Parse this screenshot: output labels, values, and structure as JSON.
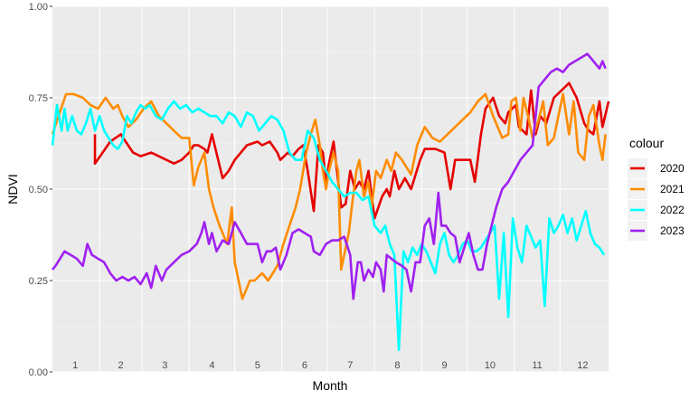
{
  "chart_data": {
    "type": "line",
    "title": "",
    "xlabel": "Month",
    "ylabel": "NDVI",
    "ylim": [
      0,
      1
    ],
    "xlim": [
      0,
      366
    ],
    "y_ticks": [
      "0.00",
      "0.25",
      "0.50",
      "0.75",
      "1.00"
    ],
    "y_tick_values": [
      0,
      0.25,
      0.5,
      0.75,
      1.0
    ],
    "month_labels": [
      "1",
      "2",
      "3",
      "4",
      "5",
      "6",
      "7",
      "8",
      "9",
      "10",
      "11",
      "12"
    ],
    "month_label_days": [
      15,
      45,
      74,
      105,
      135,
      166,
      196,
      227,
      258,
      288,
      319,
      349
    ],
    "month_boundary_days": [
      31,
      59,
      90,
      120,
      151,
      181,
      212,
      243,
      273,
      304,
      334
    ],
    "background": "#ebebeb",
    "grid": true,
    "legend": {
      "title": "colour",
      "position": "right"
    },
    "series": [
      {
        "name": "2020",
        "color": "#e60000",
        "x": [
          28,
          28,
          33,
          38,
          45,
          53,
          58,
          65,
          75,
          80,
          85,
          90,
          93,
          96,
          100,
          102,
          105,
          112,
          116,
          120,
          128,
          135,
          138,
          143,
          148,
          150,
          155,
          158,
          162,
          165,
          168,
          172,
          175,
          178,
          180,
          182,
          185,
          190,
          193,
          196,
          199,
          202,
          205,
          208,
          212,
          217,
          220,
          222,
          225,
          228,
          232,
          236,
          242,
          245,
          252,
          258,
          260,
          262,
          265,
          270,
          275,
          278,
          282,
          285,
          290,
          294,
          298,
          300,
          305,
          307,
          312,
          315,
          318,
          321,
          325,
          330,
          335,
          340,
          345,
          350,
          353,
          356,
          360,
          362,
          366
        ],
        "y": [
          0.65,
          0.57,
          0.6,
          0.63,
          0.65,
          0.6,
          0.59,
          0.6,
          0.58,
          0.57,
          0.58,
          0.6,
          0.62,
          0.62,
          0.61,
          0.6,
          0.65,
          0.53,
          0.55,
          0.58,
          0.62,
          0.63,
          0.62,
          0.63,
          0.6,
          0.58,
          0.6,
          0.59,
          0.61,
          0.62,
          0.55,
          0.44,
          0.62,
          0.6,
          0.52,
          0.57,
          0.63,
          0.45,
          0.46,
          0.55,
          0.5,
          0.52,
          0.5,
          0.55,
          0.42,
          0.48,
          0.5,
          0.48,
          0.55,
          0.5,
          0.53,
          0.5,
          0.58,
          0.61,
          0.61,
          0.6,
          0.55,
          0.5,
          0.58,
          0.58,
          0.58,
          0.52,
          0.65,
          0.72,
          0.75,
          0.7,
          0.68,
          0.71,
          0.73,
          0.67,
          0.65,
          0.77,
          0.65,
          0.7,
          0.68,
          0.75,
          0.77,
          0.79,
          0.75,
          0.68,
          0.66,
          0.65,
          0.74,
          0.67,
          0.74
        ]
      },
      {
        "name": "2021",
        "color": "#ff8c00",
        "x": [
          0,
          4,
          9,
          14,
          20,
          25,
          30,
          35,
          40,
          43,
          46,
          50,
          55,
          60,
          65,
          70,
          75,
          80,
          85,
          88,
          90,
          93,
          96,
          100,
          103,
          106,
          110,
          115,
          118,
          120,
          125,
          128,
          130,
          133,
          138,
          142,
          148,
          152,
          156,
          160,
          163,
          167,
          170,
          173,
          176,
          178,
          180,
          182,
          185,
          188,
          190,
          192,
          195,
          197,
          200,
          202,
          205,
          208,
          210,
          213,
          216,
          220,
          223,
          226,
          230,
          233,
          236,
          240,
          245,
          250,
          255,
          260,
          265,
          270,
          275,
          280,
          285,
          290,
          293,
          296,
          300,
          302,
          305,
          308,
          310,
          313,
          316,
          320,
          323,
          326,
          330,
          333,
          336,
          340,
          343,
          346,
          350,
          353,
          356,
          360,
          362,
          364
        ],
        "y": [
          0.65,
          0.7,
          0.76,
          0.76,
          0.75,
          0.73,
          0.72,
          0.75,
          0.72,
          0.73,
          0.7,
          0.67,
          0.69,
          0.72,
          0.74,
          0.7,
          0.68,
          0.66,
          0.64,
          0.64,
          0.64,
          0.51,
          0.56,
          0.6,
          0.5,
          0.45,
          0.4,
          0.35,
          0.45,
          0.3,
          0.2,
          0.23,
          0.25,
          0.25,
          0.27,
          0.25,
          0.29,
          0.35,
          0.4,
          0.45,
          0.5,
          0.6,
          0.65,
          0.69,
          0.62,
          0.55,
          0.5,
          0.55,
          0.6,
          0.55,
          0.28,
          0.32,
          0.38,
          0.45,
          0.55,
          0.58,
          0.48,
          0.52,
          0.45,
          0.55,
          0.53,
          0.58,
          0.55,
          0.6,
          0.58,
          0.56,
          0.54,
          0.62,
          0.67,
          0.64,
          0.63,
          0.65,
          0.67,
          0.69,
          0.71,
          0.74,
          0.76,
          0.7,
          0.67,
          0.64,
          0.65,
          0.74,
          0.75,
          0.66,
          0.75,
          0.7,
          0.64,
          0.69,
          0.74,
          0.62,
          0.64,
          0.7,
          0.76,
          0.65,
          0.74,
          0.6,
          0.58,
          0.7,
          0.73,
          0.62,
          0.58,
          0.65
        ]
      },
      {
        "name": "2022",
        "color": "#00ffff",
        "x": [
          0,
          3,
          6,
          8,
          10,
          13,
          16,
          19,
          22,
          25,
          28,
          31,
          34,
          37,
          40,
          43,
          46,
          49,
          52,
          55,
          58,
          61,
          64,
          68,
          72,
          76,
          80,
          84,
          88,
          92,
          96,
          100,
          104,
          108,
          112,
          116,
          120,
          124,
          128,
          132,
          136,
          140,
          144,
          148,
          152,
          156,
          160,
          164,
          168,
          172,
          176,
          180,
          184,
          188,
          192,
          196,
          200,
          204,
          208,
          212,
          216,
          219,
          222,
          225,
          228,
          231,
          234,
          237,
          240,
          243,
          246,
          249,
          252,
          255,
          258,
          261,
          264,
          267,
          270,
          273,
          276,
          279,
          282,
          285,
          288,
          291,
          294,
          297,
          300,
          303,
          306,
          309,
          312,
          315,
          318,
          321,
          324,
          327,
          330,
          333,
          336,
          339,
          342,
          345,
          348,
          351,
          354,
          357,
          360,
          363
        ],
        "y": [
          0.62,
          0.73,
          0.66,
          0.72,
          0.66,
          0.7,
          0.66,
          0.65,
          0.68,
          0.72,
          0.66,
          0.7,
          0.66,
          0.64,
          0.62,
          0.61,
          0.63,
          0.7,
          0.68,
          0.71,
          0.73,
          0.72,
          0.73,
          0.7,
          0.69,
          0.72,
          0.74,
          0.72,
          0.73,
          0.71,
          0.72,
          0.71,
          0.7,
          0.7,
          0.68,
          0.71,
          0.7,
          0.67,
          0.71,
          0.7,
          0.66,
          0.68,
          0.7,
          0.69,
          0.66,
          0.6,
          0.58,
          0.58,
          0.66,
          0.64,
          0.58,
          0.55,
          0.52,
          0.5,
          0.48,
          0.49,
          0.49,
          0.47,
          0.48,
          0.4,
          0.38,
          0.4,
          0.35,
          0.32,
          0.06,
          0.33,
          0.3,
          0.34,
          0.32,
          0.35,
          0.33,
          0.3,
          0.27,
          0.35,
          0.38,
          0.32,
          0.3,
          0.32,
          0.35,
          0.36,
          0.33,
          0.33,
          0.34,
          0.36,
          0.38,
          0.4,
          0.2,
          0.38,
          0.15,
          0.42,
          0.34,
          0.3,
          0.4,
          0.37,
          0.34,
          0.36,
          0.18,
          0.42,
          0.38,
          0.4,
          0.43,
          0.38,
          0.42,
          0.36,
          0.4,
          0.44,
          0.38,
          0.35,
          0.34,
          0.32
        ]
      },
      {
        "name": "2023",
        "color": "#a020f0",
        "x": [
          0,
          2,
          5,
          8,
          12,
          16,
          20,
          23,
          26,
          30,
          34,
          38,
          42,
          46,
          50,
          54,
          58,
          62,
          65,
          68,
          72,
          75,
          80,
          85,
          90,
          95,
          98,
          100,
          103,
          105,
          108,
          112,
          116,
          120,
          124,
          128,
          132,
          135,
          138,
          141,
          144,
          147,
          150,
          154,
          158,
          162,
          166,
          170,
          172,
          176,
          180,
          184,
          188,
          192,
          196,
          198,
          201,
          203,
          205,
          208,
          211,
          213,
          216,
          218,
          220,
          223,
          226,
          230,
          233,
          236,
          239,
          242,
          245,
          248,
          251,
          254,
          256,
          259,
          262,
          265,
          268,
          271,
          274,
          277,
          280,
          283,
          286,
          289,
          292,
          296,
          300,
          304,
          308,
          312,
          316,
          320,
          324,
          328,
          332,
          336,
          340,
          344,
          348,
          352,
          356,
          360,
          362,
          364
        ],
        "y": [
          0.28,
          0.29,
          0.31,
          0.33,
          0.32,
          0.31,
          0.29,
          0.35,
          0.32,
          0.31,
          0.3,
          0.27,
          0.25,
          0.26,
          0.25,
          0.26,
          0.24,
          0.27,
          0.23,
          0.29,
          0.25,
          0.28,
          0.3,
          0.32,
          0.33,
          0.35,
          0.38,
          0.41,
          0.35,
          0.38,
          0.33,
          0.36,
          0.35,
          0.41,
          0.38,
          0.35,
          0.35,
          0.35,
          0.3,
          0.33,
          0.33,
          0.34,
          0.28,
          0.32,
          0.38,
          0.39,
          0.38,
          0.37,
          0.33,
          0.32,
          0.35,
          0.36,
          0.36,
          0.37,
          0.32,
          0.2,
          0.3,
          0.3,
          0.25,
          0.28,
          0.26,
          0.3,
          0.28,
          0.22,
          0.32,
          0.31,
          0.3,
          0.29,
          0.28,
          0.22,
          0.3,
          0.3,
          0.4,
          0.42,
          0.35,
          0.49,
          0.4,
          0.4,
          0.38,
          0.37,
          0.3,
          0.34,
          0.38,
          0.32,
          0.28,
          0.28,
          0.35,
          0.4,
          0.45,
          0.5,
          0.52,
          0.55,
          0.58,
          0.6,
          0.62,
          0.78,
          0.8,
          0.82,
          0.83,
          0.82,
          0.84,
          0.85,
          0.86,
          0.87,
          0.85,
          0.83,
          0.85,
          0.83
        ]
      }
    ]
  }
}
